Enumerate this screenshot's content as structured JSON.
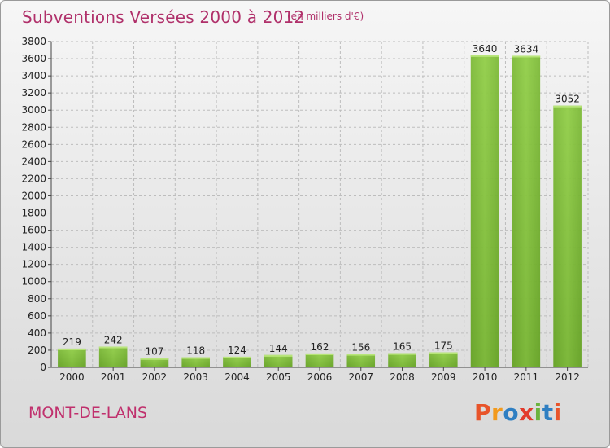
{
  "header": {
    "title": "Subventions Versées 2000 à 2012",
    "unit_note": "(en milliers d'€)"
  },
  "footer": {
    "place": "MONT-DE-LANS",
    "brand": "Proxiti",
    "brand_colors": [
      "#e8542a",
      "#f29a1d",
      "#2f7fc2",
      "#e23a2c",
      "#6cb33e",
      "#2f7fc2",
      "#e8542a"
    ]
  },
  "colors": {
    "bar": "#86c440",
    "bar_dark": "#5e9a1d",
    "title": "#b0306a",
    "grid": "#bdbdbd"
  },
  "chart_data": {
    "type": "bar",
    "title": "Subventions Versées 2000 à 2012",
    "subtitle": "(en milliers d'€)",
    "xlabel": "",
    "ylabel": "",
    "categories": [
      "2000",
      "2001",
      "2002",
      "2003",
      "2004",
      "2005",
      "2006",
      "2007",
      "2008",
      "2009",
      "2010",
      "2011",
      "2012"
    ],
    "values": [
      219,
      242,
      107,
      118,
      124,
      144,
      162,
      156,
      165,
      175,
      3640,
      3634,
      3052
    ],
    "ylim": [
      0,
      3800
    ],
    "yticks": [
      0,
      200,
      400,
      600,
      800,
      1000,
      1200,
      1400,
      1600,
      1800,
      2000,
      2200,
      2400,
      2600,
      2800,
      3000,
      3200,
      3400,
      3600,
      3800
    ],
    "grid": true,
    "legend": "none"
  }
}
